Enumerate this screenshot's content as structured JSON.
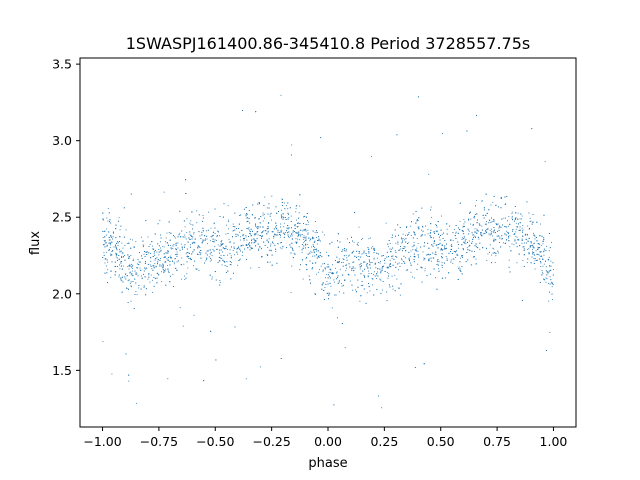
{
  "chart_data": {
    "type": "scatter",
    "title": "1SWASPJ161400.86-345410.8 Period 3728557.75s",
    "xlabel": "phase",
    "ylabel": "flux",
    "xlim": [
      -1.1,
      1.1
    ],
    "ylim": [
      1.13,
      3.54
    ],
    "xticks": [
      -1.0,
      -0.75,
      -0.5,
      -0.25,
      0.0,
      0.25,
      0.5,
      0.75,
      1.0
    ],
    "xtick_labels": [
      "−1.00",
      "−0.75",
      "−0.50",
      "−0.25",
      "0.00",
      "0.25",
      "0.50",
      "0.75",
      "1.00"
    ],
    "yticks": [
      1.5,
      2.0,
      2.5,
      3.0,
      3.5
    ],
    "ytick_labels": [
      "1.5",
      "2.0",
      "2.5",
      "3.0",
      "3.5"
    ],
    "grid": false,
    "legend": "none",
    "marker_color": "#1f77b4",
    "series": [
      {
        "x": [
          -1.0,
          -0.95,
          -0.9,
          -0.85,
          -0.8,
          -0.75,
          -0.7,
          -0.65,
          -0.6,
          -0.55,
          -0.5,
          -0.45,
          -0.4,
          -0.35,
          -0.3,
          -0.25,
          -0.2,
          -0.15,
          -0.1,
          -0.05,
          0.0,
          0.05,
          0.1,
          0.15,
          0.2,
          0.25,
          0.3,
          0.35,
          0.4,
          0.45,
          0.5,
          0.55,
          0.6,
          0.65,
          0.7,
          0.75,
          0.8,
          0.85,
          0.9,
          0.95,
          1.0
        ],
        "y": [
          2.35,
          2.3,
          2.2,
          2.15,
          2.2,
          2.2,
          2.25,
          2.3,
          2.35,
          2.35,
          2.3,
          2.3,
          2.35,
          2.4,
          2.4,
          2.4,
          2.45,
          2.4,
          2.35,
          2.25,
          2.1,
          2.2,
          2.2,
          2.15,
          2.2,
          2.2,
          2.25,
          2.3,
          2.35,
          2.35,
          2.3,
          2.3,
          2.35,
          2.4,
          2.4,
          2.4,
          2.45,
          2.4,
          2.35,
          2.25,
          2.1
        ]
      }
    ]
  }
}
